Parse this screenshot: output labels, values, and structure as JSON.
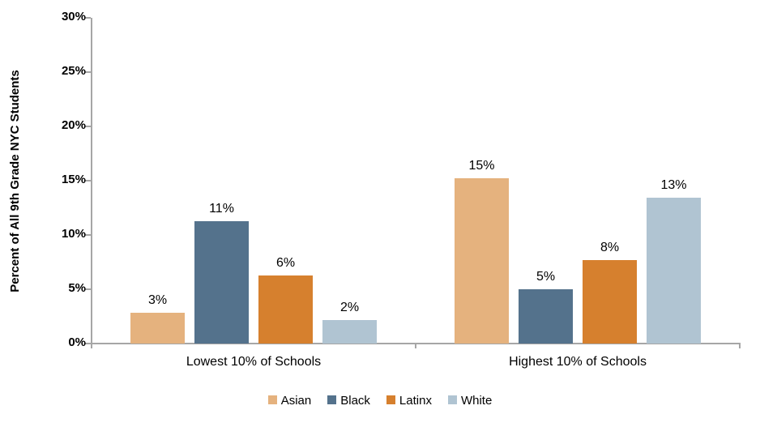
{
  "chart_data": {
    "type": "bar",
    "title": "",
    "ylabel": "Percent of All 9th Grade NYC Students",
    "xlabel": "",
    "ylim": [
      0,
      30
    ],
    "yticks": [
      "0%",
      "5%",
      "10%",
      "15%",
      "20%",
      "25%",
      "30%"
    ],
    "ytick_values": [
      0,
      5,
      10,
      15,
      20,
      25,
      30
    ],
    "grid": false,
    "legend_position": "bottom",
    "axis_color": "#a6a6a6",
    "categories": [
      "Lowest 10% of Schools",
      "Highest 10% of Schools"
    ],
    "series": [
      {
        "name": "Asian",
        "color": "#e5b27e",
        "values": [
          2.8,
          15.2
        ],
        "value_labels": [
          "3%",
          "15%"
        ]
      },
      {
        "name": "Black",
        "color": "#54728c",
        "values": [
          11.3,
          5.0
        ],
        "value_labels": [
          "11%",
          "5%"
        ]
      },
      {
        "name": "Latinx",
        "color": "#d6802e",
        "values": [
          6.3,
          7.7
        ],
        "value_labels": [
          "6%",
          "8%"
        ]
      },
      {
        "name": "White",
        "color": "#b0c4d2",
        "values": [
          2.2,
          13.4
        ],
        "value_labels": [
          "2%",
          "13%"
        ]
      }
    ]
  }
}
